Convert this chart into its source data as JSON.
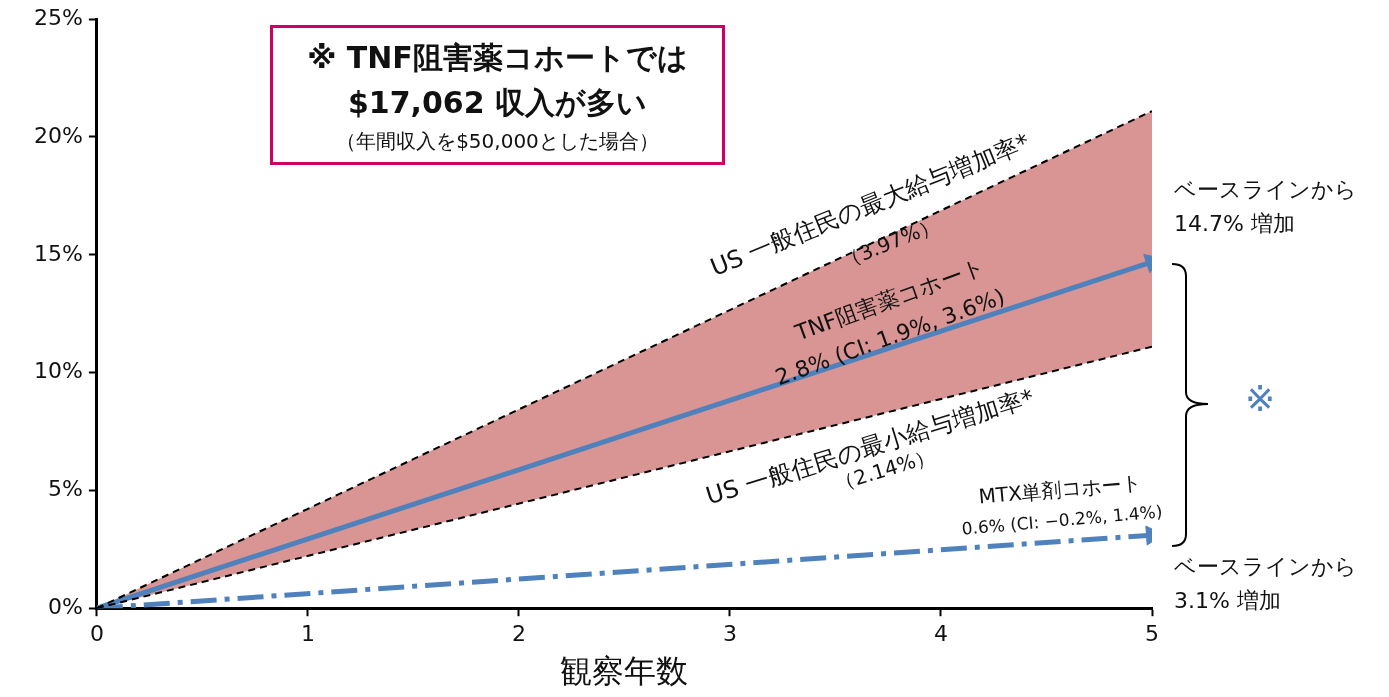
{
  "chart_data": {
    "type": "line",
    "xlabel": "観察年数",
    "x": [
      0,
      5
    ],
    "series": [
      {
        "color": "#000000",
        "line_style": "dashed",
        "values": [
          0,
          21.1
        ]
      },
      {
        "color": "#000000",
        "line_style": "dashed",
        "values": [
          0,
          11.1
        ]
      },
      {
        "color": "#4f81bd",
        "line_style": "solid",
        "values": [
          0,
          14.7
        ],
        "lower": [
          0,
          11.1
        ],
        "upper": [
          0,
          21.1
        ]
      },
      {
        "color": "#4f81bd",
        "line_style": "dashdot",
        "values": [
          0,
          3.1
        ]
      }
    ],
    "xlim": [
      0,
      5
    ],
    "xticks": [
      0,
      1,
      2,
      3,
      4,
      5
    ],
    "ylim": [
      0,
      25
    ],
    "yticks": [
      {
        "value": 0,
        "label": "0%"
      },
      {
        "value": 5,
        "label": "5%"
      },
      {
        "value": 10,
        "label": "10%"
      },
      {
        "value": 15,
        "label": "15%"
      },
      {
        "value": 20,
        "label": "20%"
      },
      {
        "value": 25,
        "label": "25%"
      }
    ],
    "grid": false,
    "legend": false,
    "annotations": [
      "※ TNF阻害薬コホートでは",
      "$17,062 収入が多い",
      "（年間収入を$50,000とした場合）",
      "※",
      "US 一般住民の最大給与増加率*",
      "（3.97%）",
      "TNF阻害薬コホート",
      "2.8% (CI: 1.9%, 3.6%)",
      "US 一般住民の最小給与増加率*",
      "（2.14%）",
      "MTX単剤コホート",
      "0.6% (CI: −0.2%, 1.4%)",
      {
        "text": "ベースラインから\n14.7% 増加",
        "x": 5,
        "y": 14.7
      },
      {
        "text": "ベースラインから\n3.1% 増加",
        "x": 5,
        "y": 3.1
      }
    ]
  }
}
